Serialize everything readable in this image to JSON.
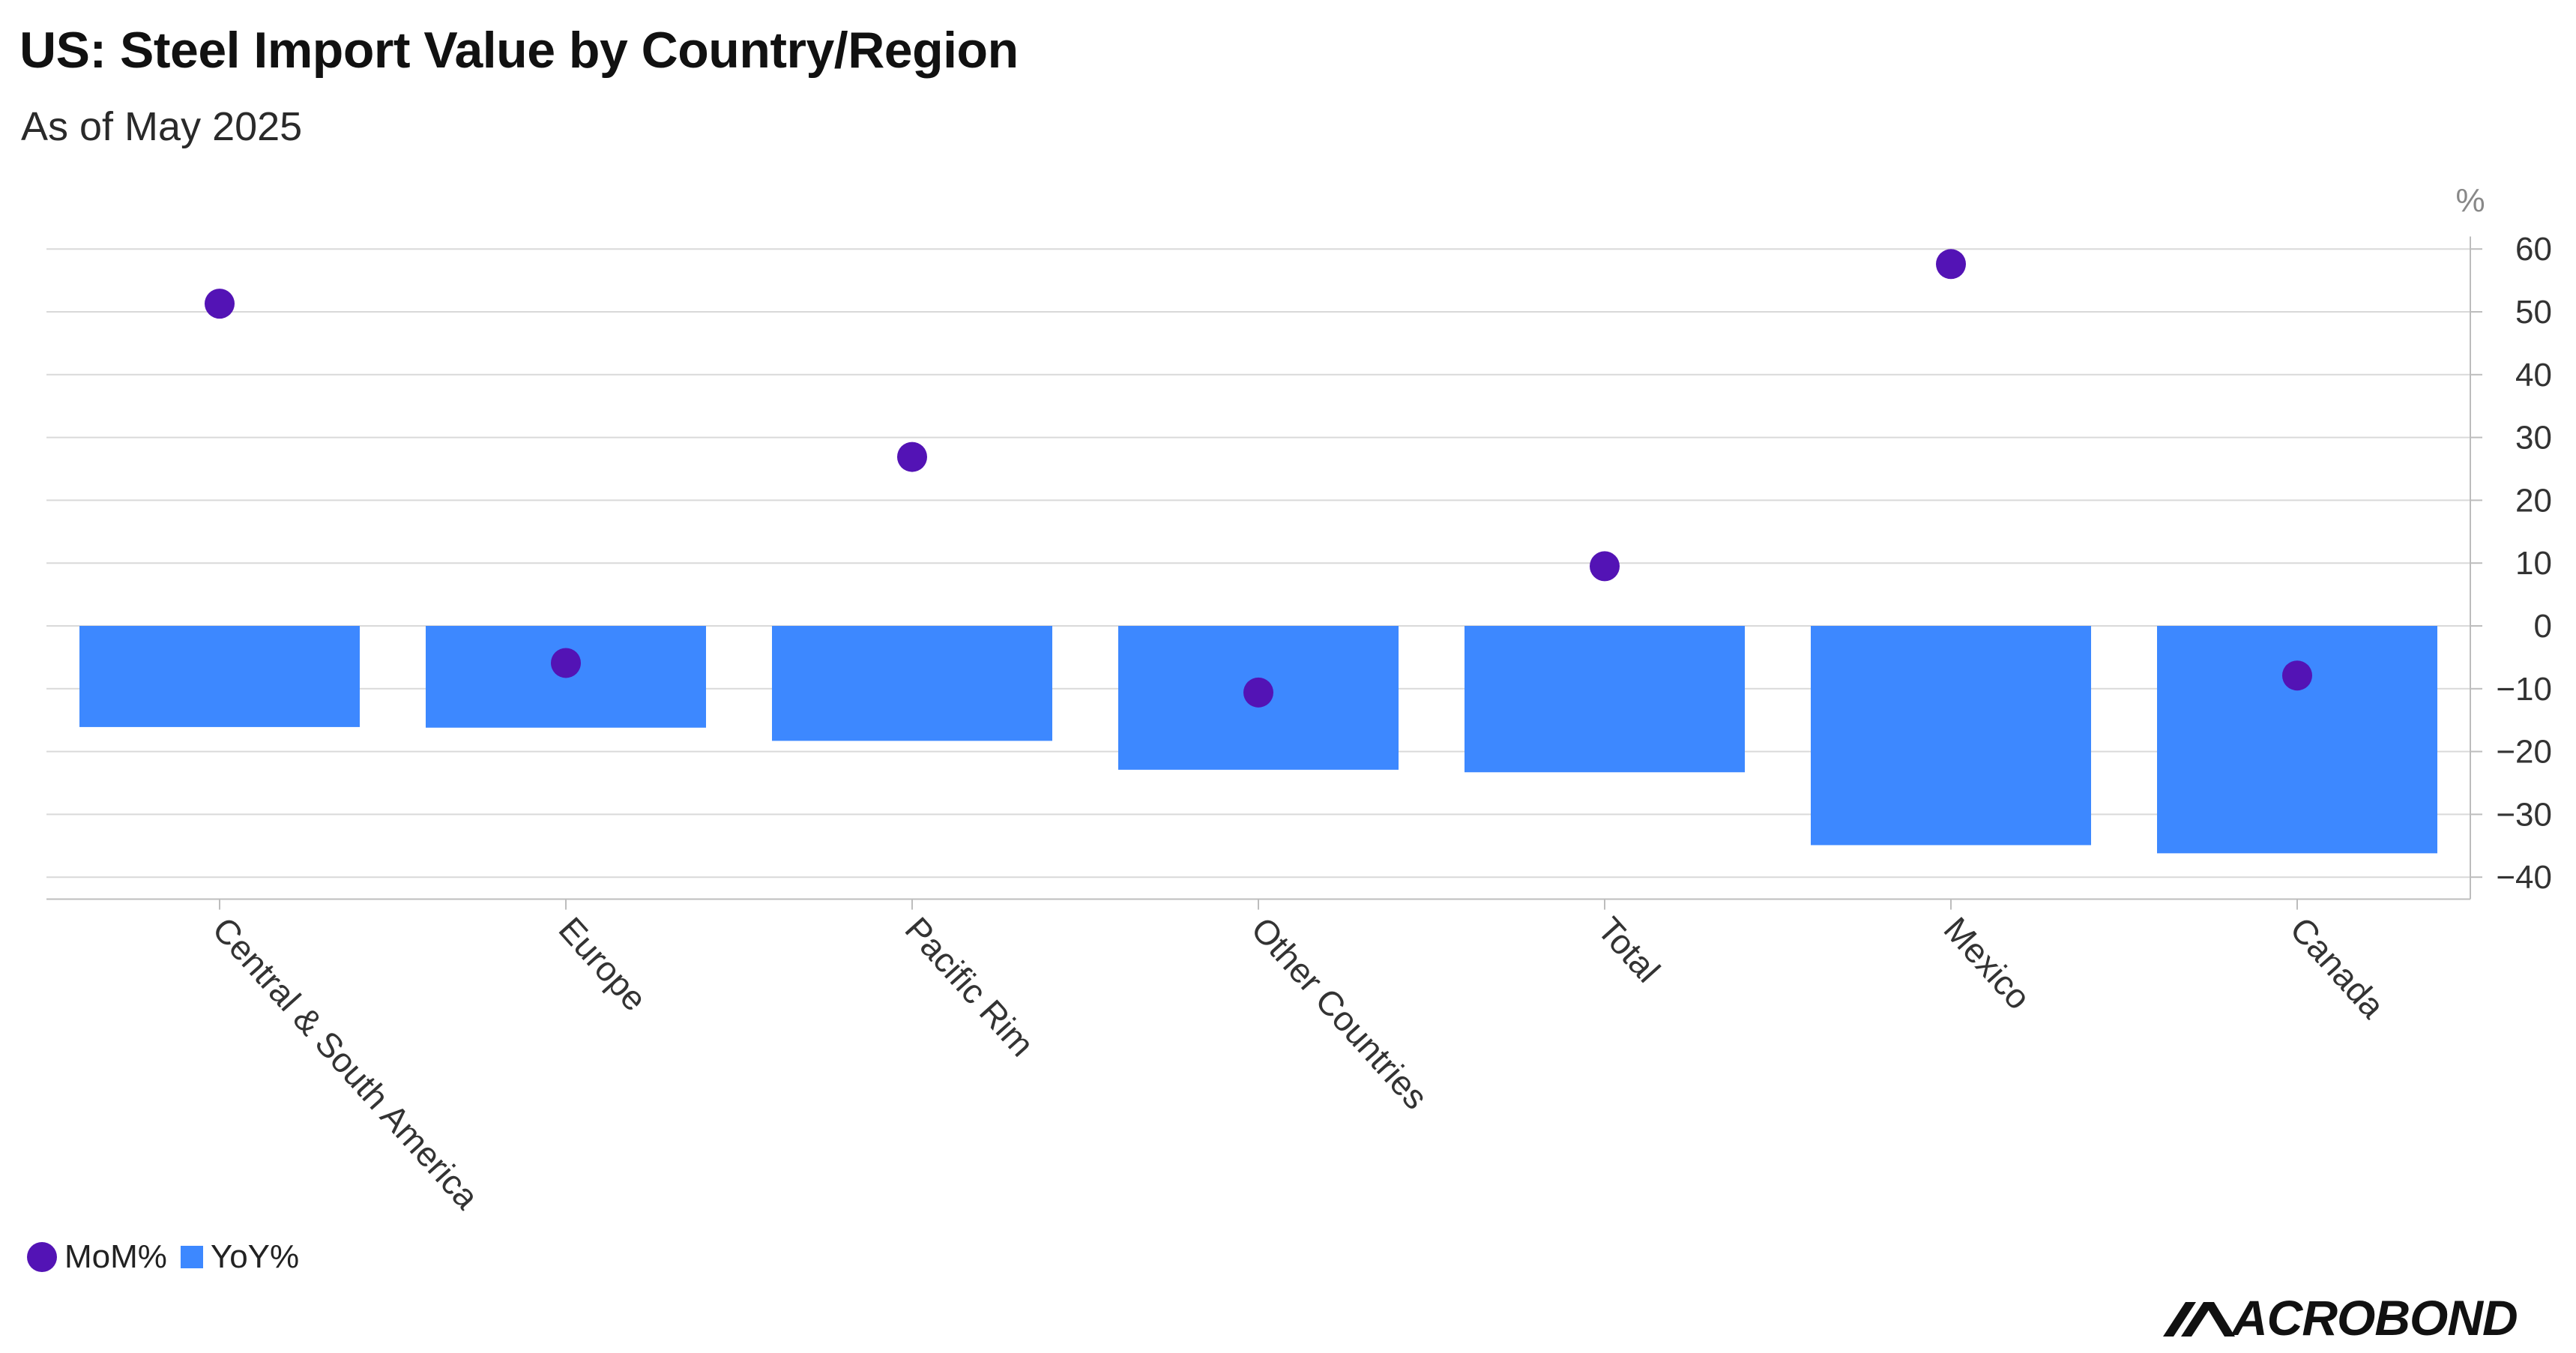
{
  "title": "US: Steel Import Value by Country/Region",
  "subtitle": "As of May 2025",
  "brand": {
    "name": "ACROBOND"
  },
  "colors": {
    "bars": "#3d88ff",
    "dots": "#5313b5",
    "grid": "#d9d9d9",
    "axis_text": "#333333"
  },
  "chart_data": {
    "type": "bar",
    "unit_label": "%",
    "categories": [
      "Central & South America",
      "Europe",
      "Pacific Rim",
      "Other Countries",
      "Total",
      "Mexico",
      "Canada"
    ],
    "series": [
      {
        "name": "YoY%",
        "type": "bar",
        "values": [
          -16.1,
          -16.2,
          -18.3,
          -22.9,
          -23.3,
          -34.9,
          -36.2
        ]
      },
      {
        "name": "MoM%",
        "type": "scatter",
        "values": [
          51.3,
          -5.9,
          26.9,
          -10.6,
          9.5,
          57.6,
          -7.9
        ]
      }
    ],
    "y_ticks": [
      60,
      50,
      40,
      30,
      20,
      10,
      0,
      -10,
      -20,
      -30,
      -40
    ],
    "ylim": [
      -43.5,
      62
    ],
    "grid": true,
    "y_axis_position": "right",
    "legend_position": "bottom-left"
  }
}
